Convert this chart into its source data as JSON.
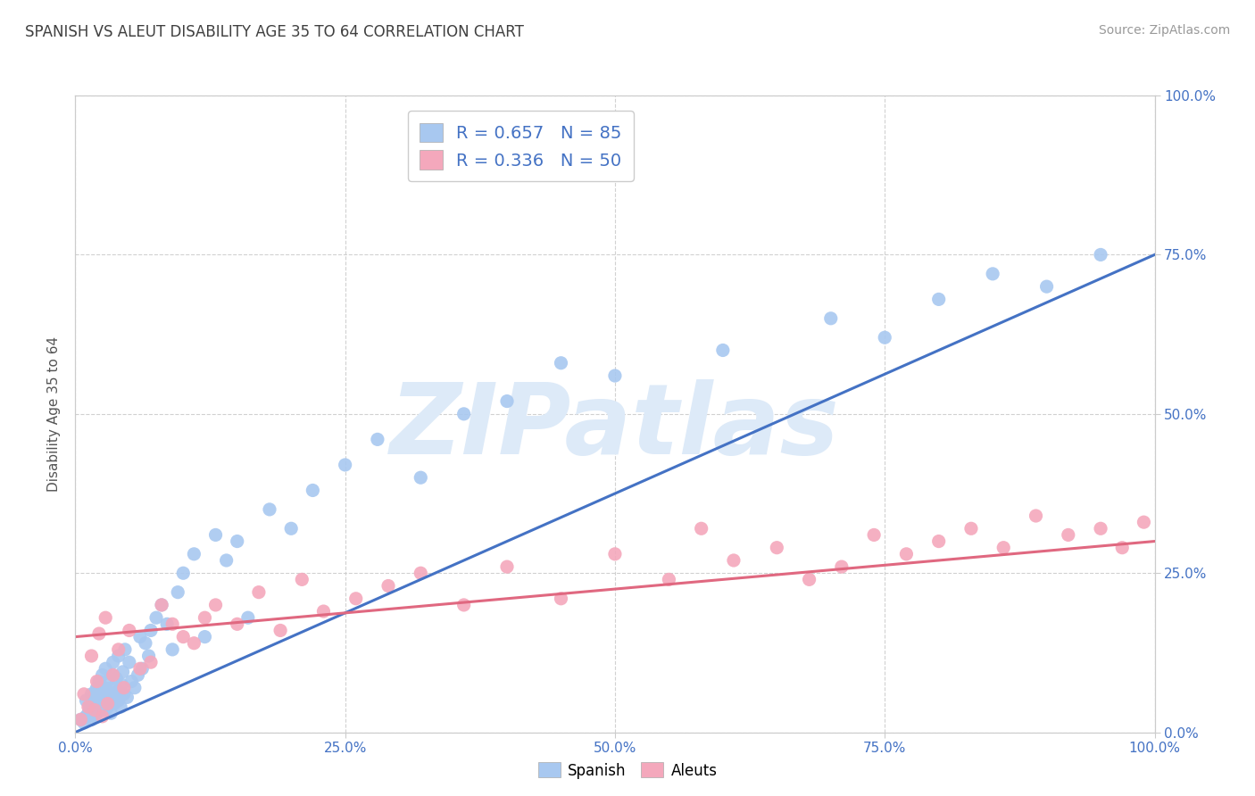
{
  "title": "SPANISH VS ALEUT DISABILITY AGE 35 TO 64 CORRELATION CHART",
  "source": "Source: ZipAtlas.com",
  "ylabel": "Disability Age 35 to 64",
  "xlim": [
    0.0,
    1.0
  ],
  "ylim": [
    0.0,
    1.0
  ],
  "xticks": [
    0.0,
    0.25,
    0.5,
    0.75,
    1.0
  ],
  "yticks": [
    0.0,
    0.25,
    0.5,
    0.75,
    1.0
  ],
  "xticklabels": [
    "0.0%",
    "25.0%",
    "50.0%",
    "75.0%",
    "100.0%"
  ],
  "yticklabels": [
    "0.0%",
    "25.0%",
    "50.0%",
    "75.0%",
    "100.0%"
  ],
  "blue_R": 0.657,
  "blue_N": 85,
  "pink_R": 0.336,
  "pink_N": 50,
  "blue_color": "#A8C8F0",
  "pink_color": "#F4A8BC",
  "blue_line_color": "#4472C4",
  "pink_line_color": "#E06880",
  "watermark": "ZIPatlas",
  "watermark_color": "#DDEAF8",
  "title_color": "#404040",
  "tick_color": "#4472C4",
  "blue_line_start_y": 0.0,
  "blue_line_end_y": 0.75,
  "pink_line_start_y": 0.15,
  "pink_line_end_y": 0.3,
  "spanish_x": [
    0.005,
    0.008,
    0.01,
    0.01,
    0.012,
    0.013,
    0.015,
    0.015,
    0.016,
    0.017,
    0.018,
    0.018,
    0.019,
    0.02,
    0.02,
    0.021,
    0.022,
    0.022,
    0.023,
    0.024,
    0.025,
    0.025,
    0.026,
    0.027,
    0.028,
    0.028,
    0.029,
    0.03,
    0.03,
    0.031,
    0.032,
    0.033,
    0.034,
    0.035,
    0.035,
    0.036,
    0.037,
    0.038,
    0.039,
    0.04,
    0.04,
    0.042,
    0.043,
    0.044,
    0.045,
    0.046,
    0.048,
    0.05,
    0.052,
    0.055,
    0.058,
    0.06,
    0.062,
    0.065,
    0.068,
    0.07,
    0.075,
    0.08,
    0.085,
    0.09,
    0.095,
    0.1,
    0.11,
    0.12,
    0.13,
    0.14,
    0.15,
    0.16,
    0.18,
    0.2,
    0.22,
    0.25,
    0.28,
    0.32,
    0.36,
    0.4,
    0.45,
    0.5,
    0.6,
    0.7,
    0.75,
    0.8,
    0.85,
    0.9,
    0.95
  ],
  "spanish_y": [
    0.02,
    0.015,
    0.025,
    0.05,
    0.03,
    0.04,
    0.02,
    0.06,
    0.035,
    0.045,
    0.055,
    0.025,
    0.065,
    0.03,
    0.07,
    0.04,
    0.05,
    0.08,
    0.06,
    0.035,
    0.045,
    0.09,
    0.055,
    0.07,
    0.035,
    0.1,
    0.065,
    0.04,
    0.08,
    0.05,
    0.06,
    0.03,
    0.07,
    0.09,
    0.11,
    0.045,
    0.055,
    0.085,
    0.065,
    0.05,
    0.12,
    0.04,
    0.075,
    0.095,
    0.06,
    0.13,
    0.055,
    0.11,
    0.08,
    0.07,
    0.09,
    0.15,
    0.1,
    0.14,
    0.12,
    0.16,
    0.18,
    0.2,
    0.17,
    0.13,
    0.22,
    0.25,
    0.28,
    0.15,
    0.31,
    0.27,
    0.3,
    0.18,
    0.35,
    0.32,
    0.38,
    0.42,
    0.46,
    0.4,
    0.5,
    0.52,
    0.58,
    0.56,
    0.6,
    0.65,
    0.62,
    0.68,
    0.72,
    0.7,
    0.75
  ],
  "aleuts_x": [
    0.005,
    0.008,
    0.012,
    0.015,
    0.018,
    0.02,
    0.022,
    0.025,
    0.028,
    0.03,
    0.035,
    0.04,
    0.045,
    0.05,
    0.06,
    0.07,
    0.08,
    0.09,
    0.1,
    0.11,
    0.12,
    0.13,
    0.15,
    0.17,
    0.19,
    0.21,
    0.23,
    0.26,
    0.29,
    0.32,
    0.36,
    0.4,
    0.45,
    0.5,
    0.55,
    0.58,
    0.61,
    0.65,
    0.68,
    0.71,
    0.74,
    0.77,
    0.8,
    0.83,
    0.86,
    0.89,
    0.92,
    0.95,
    0.97,
    0.99
  ],
  "aleuts_y": [
    0.02,
    0.06,
    0.04,
    0.12,
    0.035,
    0.08,
    0.155,
    0.025,
    0.18,
    0.045,
    0.09,
    0.13,
    0.07,
    0.16,
    0.1,
    0.11,
    0.2,
    0.17,
    0.15,
    0.14,
    0.18,
    0.2,
    0.17,
    0.22,
    0.16,
    0.24,
    0.19,
    0.21,
    0.23,
    0.25,
    0.2,
    0.26,
    0.21,
    0.28,
    0.24,
    0.32,
    0.27,
    0.29,
    0.24,
    0.26,
    0.31,
    0.28,
    0.3,
    0.32,
    0.29,
    0.34,
    0.31,
    0.32,
    0.29,
    0.33
  ]
}
